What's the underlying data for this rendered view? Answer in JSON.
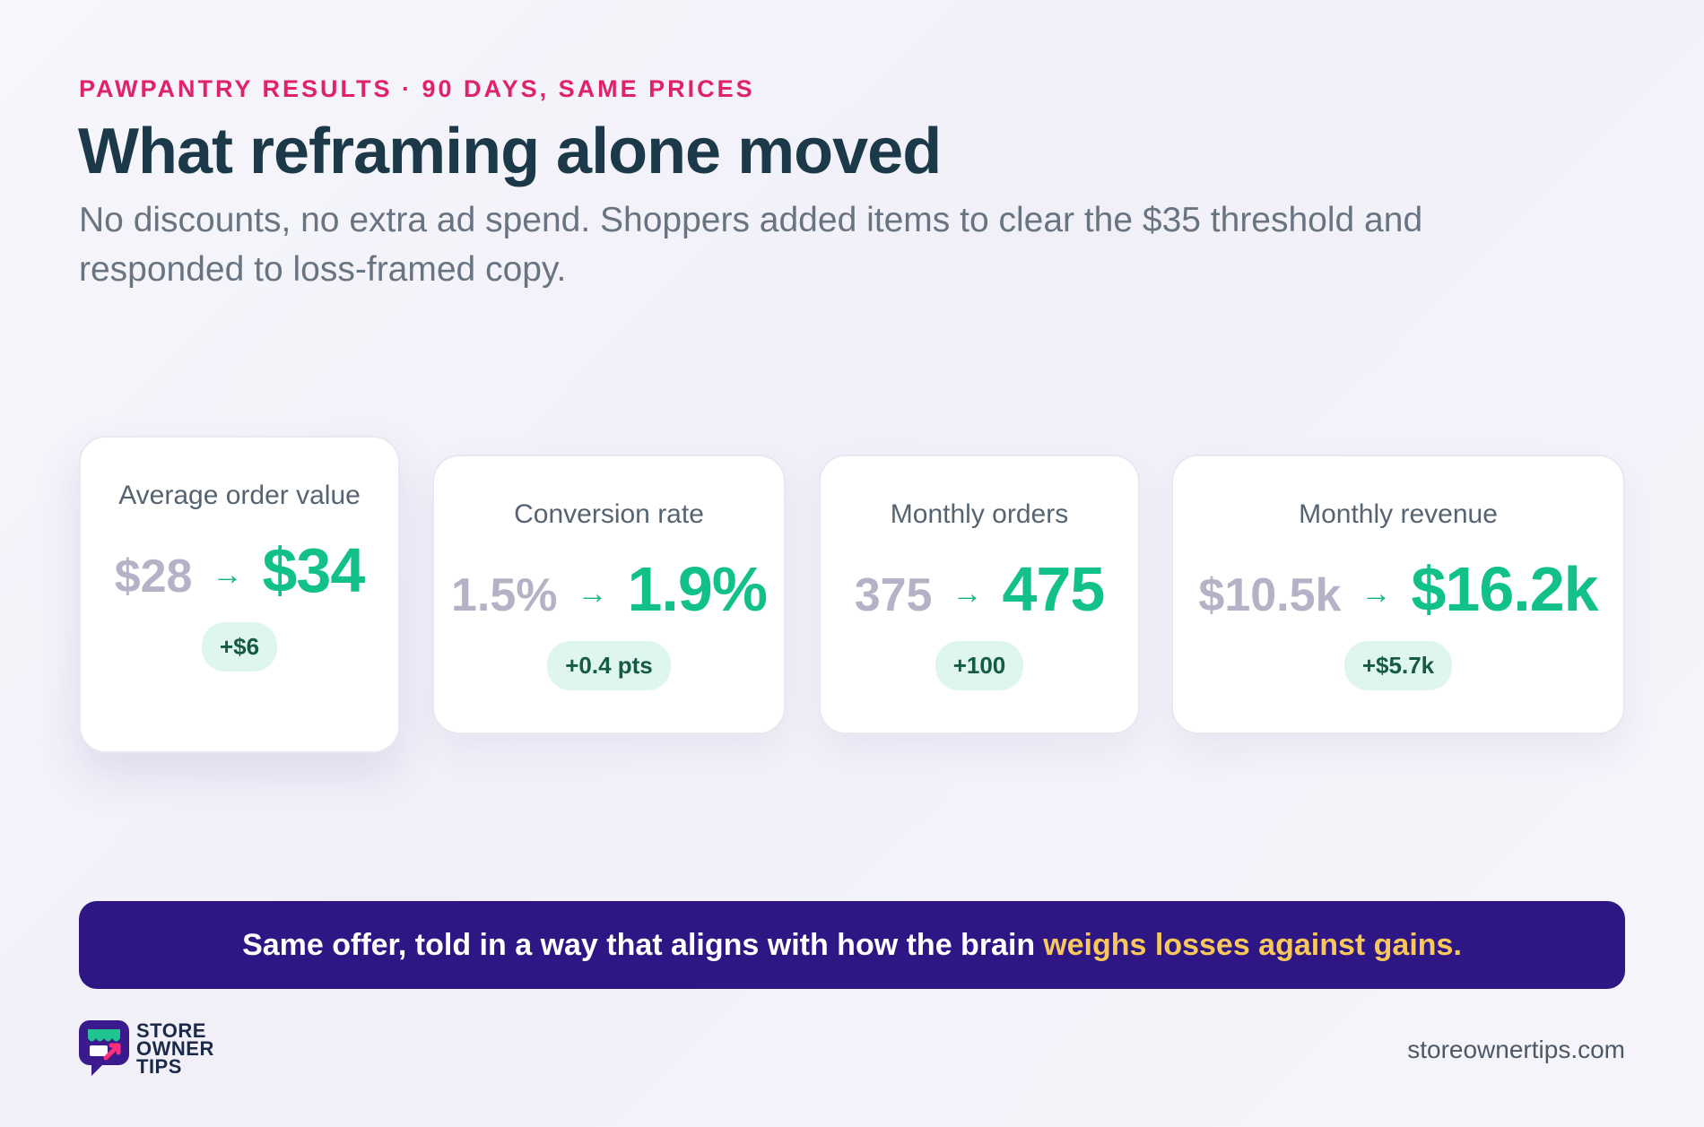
{
  "header": {
    "eyebrow": "PAWPANTRY RESULTS · 90 DAYS, SAME PRICES",
    "title": "What reframing alone moved",
    "subtitle": "No discounts, no extra ad spend. Shoppers added items to clear the $35 threshold and responded to loss-framed copy."
  },
  "metrics": [
    {
      "label": "Average order value",
      "before": "$28",
      "after": "$34",
      "delta": "+$6"
    },
    {
      "label": "Conversion rate",
      "before": "1.5%",
      "after": "1.9%",
      "delta": "+0.4 pts"
    },
    {
      "label": "Monthly orders",
      "before": "375",
      "after": "475",
      "delta": "+100"
    },
    {
      "label": "Monthly revenue",
      "before": "$10.5k",
      "after": "$16.2k",
      "delta": "+$5.7k"
    }
  ],
  "arrow_glyph": "→",
  "banner": {
    "text": "Same offer, told in a way that aligns with how the brain",
    "highlight": "weighs losses against gains."
  },
  "footer": {
    "logo_lines": [
      "STORE",
      "OWNER",
      "TIPS"
    ],
    "domain": "storeownertips.com"
  },
  "colors": {
    "accent_pink": "#e0226a",
    "positive_green": "#12c08a",
    "banner_purple": "#2e1785",
    "highlight_yellow": "#fac85a"
  }
}
